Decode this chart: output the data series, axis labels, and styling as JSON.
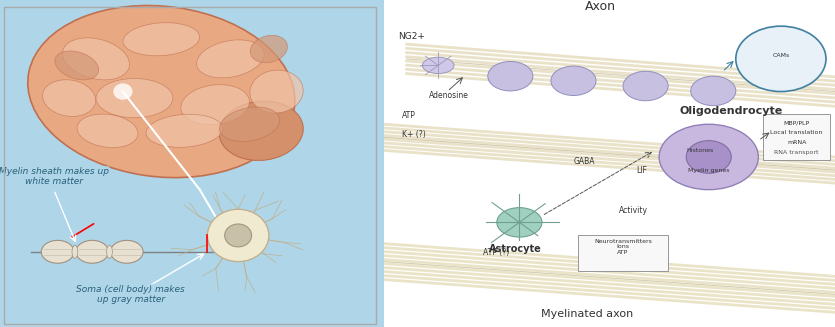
{
  "figsize": [
    8.35,
    3.27
  ],
  "dpi": 100,
  "background_color": "#ffffff",
  "left_panel": {
    "bg_color": "#aed6e8",
    "title": "",
    "brain_color": "#e8a882",
    "brain_highlight": "#f0c4a8",
    "neuron_color": "#f5f0e0",
    "myelin_color": "#e8e0d0",
    "label1": "Myelin sheath makes up\nwhite matter",
    "label2": "Soma (cell body) makes\nup gray matter",
    "label1_color": "#2a5f7a",
    "label2_color": "#2a5f7a"
  },
  "right_panel": {
    "bg_color": "#ffffff",
    "axon_color": "#c8b87a",
    "myelin_sheath_color": "#c8c0e0",
    "oligodendrocyte_color": "#c8b8e0",
    "astrocyte_color": "#a0d0c8",
    "labels": {
      "axon": "Axon",
      "ng2": "NG2+",
      "adenosine": "Adenosine",
      "atp": "ATP",
      "k": "K+ (?)",
      "gaba": "GABA",
      "oligodendrocyte": "Oligodendrocyte",
      "histones": "Histones",
      "myelin_genes": "Myelin genes",
      "rna_transport": "RNA transport",
      "mbp_plp": "MBP/PLP",
      "local_translation": "Local translation",
      "mrna": "mRNA",
      "astrocyte": "Astrocyte",
      "activity": "Activity",
      "neurotransmitters": "Neurotransmitters\nIons\nATP",
      "atp2": "ATP (?)",
      "lif": "LIF",
      "myelinated_axon": "Myelinated axon"
    },
    "label_color": "#333333",
    "title_color": "#333333"
  }
}
